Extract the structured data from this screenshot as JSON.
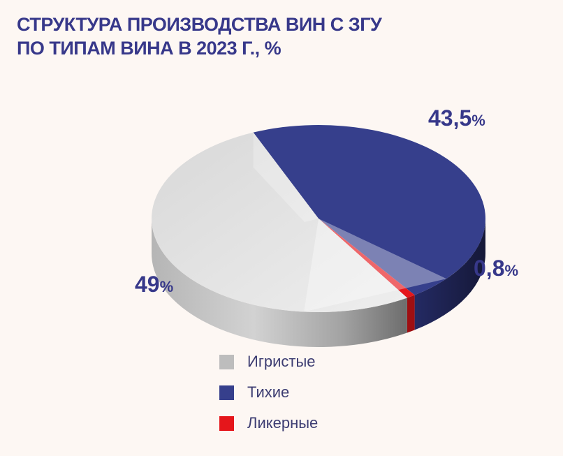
{
  "chart_data": {
    "type": "pie",
    "title_line1": "СТРУКТУРА ПРОИЗВОДСТВА ВИН С ЗГУ",
    "title_line2": "ПО ТИПАМ ВИНА В 2023 г., %",
    "unit": "%",
    "slices": [
      {
        "name": "Игристые",
        "value": 49,
        "label_num": "49",
        "color": "#c9c9c9"
      },
      {
        "name": "Тихие",
        "value": 43.5,
        "label_num": "43,5",
        "color": "#363f8c"
      },
      {
        "name": "Ликерные",
        "value": 0.8,
        "label_num": "0,8",
        "color": "#e5161b"
      }
    ],
    "legend_position": "bottom"
  }
}
